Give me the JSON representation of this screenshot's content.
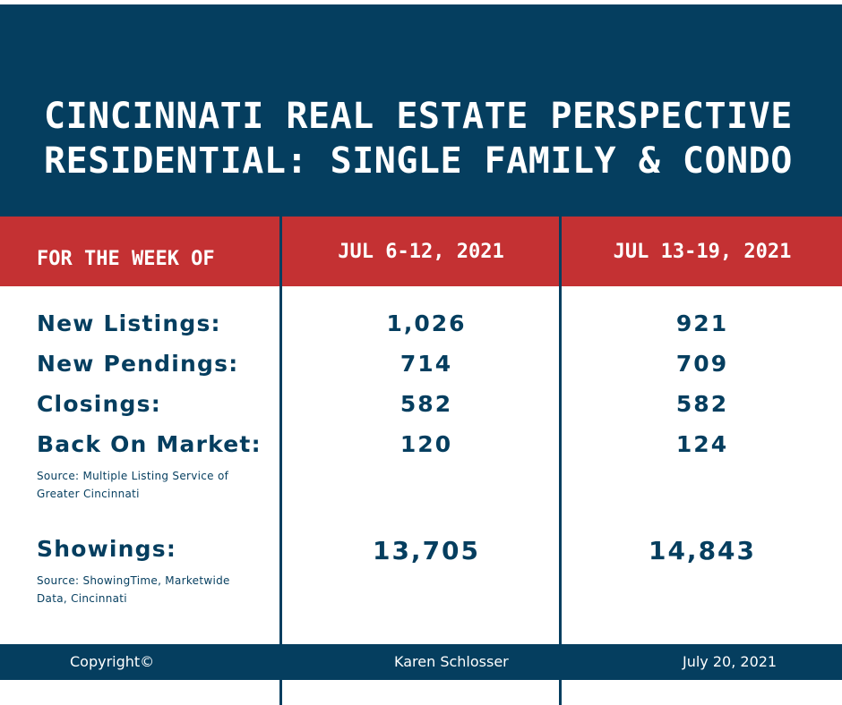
{
  "header": {
    "title_line1": "CINCINNATI REAL ESTATE PERSPECTIVE",
    "title_line2": "RESIDENTIAL: SINGLE FAMILY & CONDO"
  },
  "table": {
    "header_label": "FOR THE WEEK OF",
    "columns": [
      "JUL 6-12, 2021",
      "JUL 13-19, 2021"
    ],
    "rows": [
      {
        "label": "New Listings:",
        "values": [
          "1,026",
          "921"
        ]
      },
      {
        "label": "New Pendings:",
        "values": [
          "714",
          "709"
        ]
      },
      {
        "label": "Closings:",
        "values": [
          "582",
          "582"
        ]
      },
      {
        "label": "Back On Market:",
        "values": [
          "120",
          "124"
        ]
      }
    ],
    "source_1": {
      "line1": "Source: Multiple Listing Service of",
      "line2": "Greater Cincinnati"
    },
    "showings": {
      "label": "Showings:",
      "values": [
        "13,705",
        "14,843"
      ]
    },
    "source_2": {
      "line1": "Source: ShowingTime, Marketwide",
      "line2": "Data, Cincinnati"
    }
  },
  "footer": {
    "copyright": "Copyright©",
    "author": "Karen Schlosser",
    "date": "July 20, 2021"
  },
  "colors": {
    "navy": "#053e5f",
    "red": "#c43133",
    "white": "#ffffff"
  }
}
